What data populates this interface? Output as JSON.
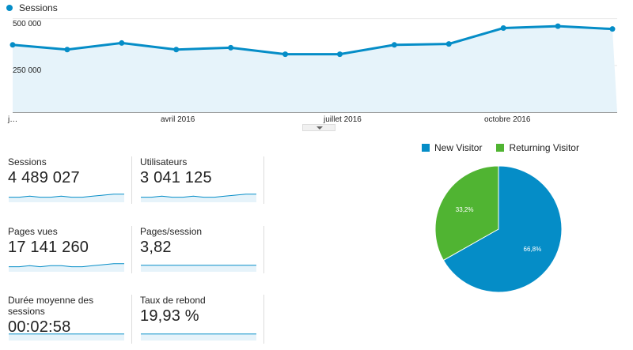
{
  "chart_data": [
    {
      "type": "line",
      "series": [
        {
          "name": "Sessions",
          "values": [
            360000,
            335000,
            370000,
            335000,
            345000,
            310000,
            310000,
            360000,
            365000,
            450000,
            460000,
            445000
          ]
        }
      ],
      "ylim": [
        0,
        600000
      ],
      "y_ticks": [
        "500 000",
        "250 000"
      ],
      "x_tick_labels": [
        "j…",
        "avril 2016",
        "juillet 2016",
        "octobre 2016"
      ],
      "color": "#058dc7",
      "fill": "#e6f3fa",
      "grid": true
    },
    {
      "type": "pie",
      "slices": [
        {
          "label": "New Visitor",
          "value": 66.8,
          "display": "66,8%",
          "color": "#058dc7"
        },
        {
          "label": "Returning Visitor",
          "value": 33.2,
          "display": "33,2%",
          "color": "#50b432"
        }
      ],
      "legend": "top"
    }
  ],
  "metrics": [
    {
      "label": "Sessions",
      "value": "4 489 027",
      "spark": [
        5,
        5,
        6,
        5,
        5,
        6,
        5,
        5,
        6,
        7,
        8,
        8
      ]
    },
    {
      "label": "Utilisateurs",
      "value": "3 041 125",
      "spark": [
        5,
        5,
        6,
        5,
        5,
        6,
        5,
        5,
        6,
        7,
        8,
        8
      ]
    },
    {
      "label": "Pages vues",
      "value": "17 141 260",
      "spark": [
        5,
        5,
        6,
        5,
        6,
        6,
        5,
        5,
        6,
        7,
        8,
        8
      ]
    },
    {
      "label": "Pages/session",
      "value": "3,82",
      "spark": [
        5,
        5,
        5,
        5,
        5,
        5,
        5,
        5,
        5,
        5,
        5,
        5
      ]
    },
    {
      "label": "Durée moyenne des sessions",
      "value": "00:02:58",
      "spark": [
        5,
        5,
        5,
        5,
        5,
        5,
        5,
        5,
        5,
        5,
        5,
        5
      ]
    },
    {
      "label": "Taux de rebond",
      "value": "19,93 %",
      "spark": [
        5,
        5,
        5,
        5,
        5,
        5,
        5,
        5,
        5,
        5,
        5,
        5
      ]
    }
  ]
}
